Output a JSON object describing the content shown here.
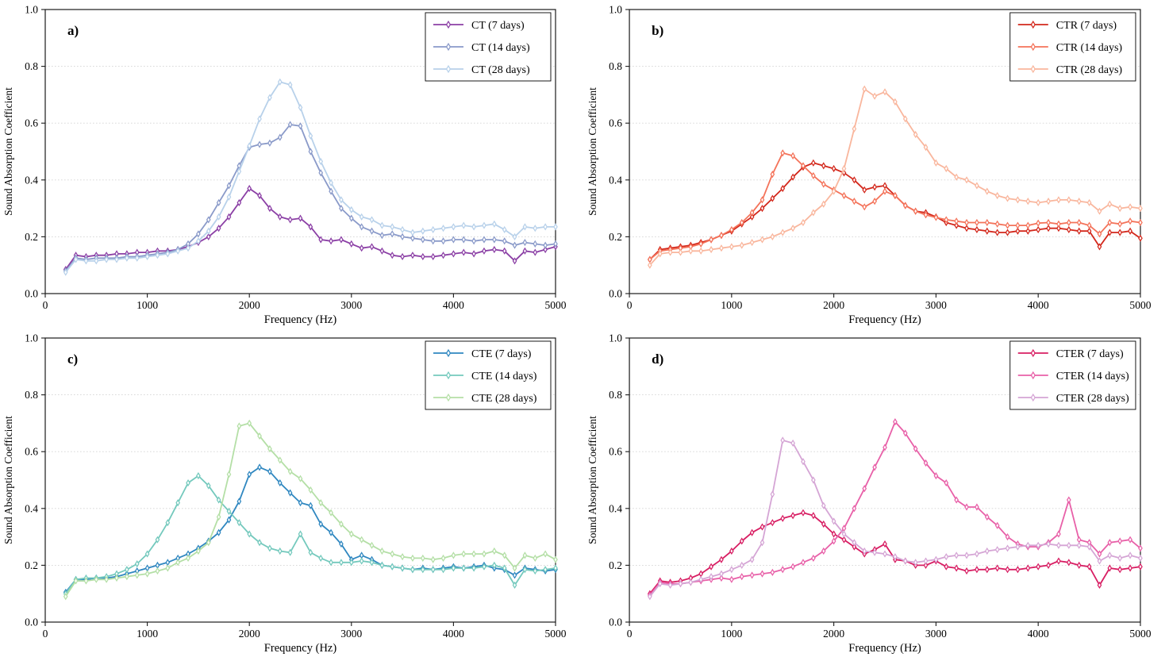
{
  "figure": {
    "background": "#ffffff",
    "grid_color": "#d4d4d4",
    "spine_color": "#1a1a1a",
    "marker_style": "open thin-diamond",
    "legend_border_color": "#000000"
  },
  "chart_data": {
    "type": "line",
    "x_label": "Frequency (Hz)",
    "y_label": "Sound Absorption Coefficient",
    "xlim": [
      0,
      5000
    ],
    "ylim": [
      0.0,
      1.0
    ],
    "x_ticks": [
      0,
      1000,
      2000,
      3000,
      4000,
      5000
    ],
    "y_ticks": [
      0.0,
      0.2,
      0.4,
      0.6,
      0.8,
      1.0
    ],
    "y_tick_labels": [
      "0.0",
      "0.2",
      "0.4",
      "0.6",
      "0.8",
      "1.0"
    ],
    "grid": "horizontal dashed lines at 0.2, 0.4, 0.6, 0.8",
    "legend_position": "upper right",
    "marker": "thin-diamond",
    "frequencies_hz": [
      200,
      300,
      400,
      500,
      600,
      700,
      800,
      900,
      1000,
      1100,
      1200,
      1300,
      1400,
      1500,
      1600,
      1700,
      1800,
      1900,
      2000,
      2100,
      2200,
      2300,
      2400,
      2500,
      2600,
      2700,
      2800,
      2900,
      3000,
      3100,
      3200,
      3300,
      3400,
      3500,
      3600,
      3700,
      3800,
      3900,
      4000,
      4100,
      4200,
      4300,
      4400,
      4500,
      4600,
      4700,
      4800,
      4900,
      5000
    ],
    "panels": [
      {
        "id": "a",
        "label": "a)",
        "series": [
          {
            "name": "CT (7 days)",
            "color": "#8b3fa5",
            "values": [
              0.085,
              0.135,
              0.13,
              0.135,
              0.135,
              0.14,
              0.14,
              0.145,
              0.145,
              0.15,
              0.15,
              0.155,
              0.165,
              0.18,
              0.2,
              0.23,
              0.27,
              0.32,
              0.37,
              0.345,
              0.3,
              0.27,
              0.26,
              0.265,
              0.235,
              0.19,
              0.185,
              0.19,
              0.175,
              0.16,
              0.165,
              0.15,
              0.135,
              0.13,
              0.135,
              0.13,
              0.13,
              0.135,
              0.14,
              0.145,
              0.14,
              0.15,
              0.155,
              0.15,
              0.115,
              0.15,
              0.145,
              0.155,
              0.165
            ]
          },
          {
            "name": "CT (14 days)",
            "color": "#8a9ac9",
            "values": [
              0.08,
              0.125,
              0.12,
              0.125,
              0.125,
              0.125,
              0.13,
              0.13,
              0.135,
              0.14,
              0.145,
              0.155,
              0.175,
              0.21,
              0.26,
              0.32,
              0.38,
              0.45,
              0.515,
              0.525,
              0.53,
              0.55,
              0.595,
              0.59,
              0.5,
              0.425,
              0.36,
              0.3,
              0.265,
              0.235,
              0.22,
              0.205,
              0.21,
              0.2,
              0.195,
              0.19,
              0.185,
              0.185,
              0.19,
              0.19,
              0.185,
              0.19,
              0.19,
              0.185,
              0.17,
              0.18,
              0.175,
              0.17,
              0.175
            ]
          },
          {
            "name": "CT (28 days)",
            "color": "#b8d1ea",
            "values": [
              0.075,
              0.12,
              0.115,
              0.115,
              0.12,
              0.12,
              0.125,
              0.125,
              0.13,
              0.135,
              0.14,
              0.15,
              0.16,
              0.185,
              0.22,
              0.27,
              0.34,
              0.43,
              0.52,
              0.615,
              0.69,
              0.745,
              0.735,
              0.655,
              0.555,
              0.465,
              0.39,
              0.33,
              0.295,
              0.27,
              0.26,
              0.24,
              0.235,
              0.225,
              0.215,
              0.22,
              0.225,
              0.23,
              0.235,
              0.24,
              0.235,
              0.24,
              0.245,
              0.225,
              0.2,
              0.235,
              0.23,
              0.235,
              0.235
            ]
          }
        ]
      },
      {
        "id": "b",
        "label": "b)",
        "series": [
          {
            "name": "CTR (7 days)",
            "color": "#d3281c",
            "values": [
              0.12,
              0.155,
              0.16,
              0.165,
              0.17,
              0.18,
              0.19,
              0.205,
              0.22,
              0.245,
              0.27,
              0.3,
              0.335,
              0.37,
              0.41,
              0.445,
              0.46,
              0.45,
              0.44,
              0.425,
              0.4,
              0.365,
              0.375,
              0.38,
              0.345,
              0.31,
              0.29,
              0.285,
              0.27,
              0.25,
              0.24,
              0.23,
              0.225,
              0.22,
              0.215,
              0.215,
              0.22,
              0.22,
              0.225,
              0.23,
              0.23,
              0.225,
              0.22,
              0.22,
              0.165,
              0.215,
              0.215,
              0.22,
              0.195
            ]
          },
          {
            "name": "CTR (14 days)",
            "color": "#f4735a",
            "values": [
              0.12,
              0.15,
              0.155,
              0.16,
              0.165,
              0.175,
              0.19,
              0.205,
              0.225,
              0.25,
              0.285,
              0.33,
              0.42,
              0.495,
              0.485,
              0.45,
              0.415,
              0.385,
              0.365,
              0.345,
              0.325,
              0.305,
              0.325,
              0.36,
              0.345,
              0.31,
              0.29,
              0.277,
              0.268,
              0.26,
              0.255,
              0.25,
              0.25,
              0.25,
              0.245,
              0.24,
              0.24,
              0.24,
              0.248,
              0.25,
              0.245,
              0.25,
              0.25,
              0.24,
              0.21,
              0.25,
              0.245,
              0.255,
              0.25
            ]
          },
          {
            "name": "CTR (28 days)",
            "color": "#f9b69d",
            "values": [
              0.1,
              0.14,
              0.145,
              0.145,
              0.15,
              0.15,
              0.155,
              0.16,
              0.165,
              0.17,
              0.18,
              0.19,
              0.2,
              0.215,
              0.23,
              0.25,
              0.285,
              0.315,
              0.36,
              0.44,
              0.58,
              0.72,
              0.695,
              0.71,
              0.675,
              0.615,
              0.56,
              0.515,
              0.46,
              0.44,
              0.41,
              0.4,
              0.38,
              0.36,
              0.345,
              0.335,
              0.33,
              0.325,
              0.32,
              0.325,
              0.33,
              0.33,
              0.325,
              0.32,
              0.29,
              0.315,
              0.3,
              0.305,
              0.3
            ]
          }
        ]
      },
      {
        "id": "c",
        "label": "c)",
        "series": [
          {
            "name": "CTE (7 days)",
            "color": "#2f87c0",
            "values": [
              0.105,
              0.15,
              0.15,
              0.155,
              0.155,
              0.16,
              0.17,
              0.18,
              0.19,
              0.2,
              0.21,
              0.225,
              0.24,
              0.26,
              0.285,
              0.315,
              0.36,
              0.425,
              0.52,
              0.545,
              0.53,
              0.49,
              0.455,
              0.42,
              0.41,
              0.345,
              0.315,
              0.275,
              0.22,
              0.235,
              0.22,
              0.2,
              0.195,
              0.19,
              0.185,
              0.19,
              0.185,
              0.19,
              0.195,
              0.19,
              0.195,
              0.2,
              0.19,
              0.185,
              0.165,
              0.19,
              0.185,
              0.18,
              0.185
            ]
          },
          {
            "name": "CTE (14 days)",
            "color": "#74c9bd",
            "values": [
              0.1,
              0.15,
              0.155,
              0.155,
              0.16,
              0.17,
              0.185,
              0.205,
              0.24,
              0.29,
              0.35,
              0.42,
              0.49,
              0.515,
              0.48,
              0.43,
              0.39,
              0.35,
              0.31,
              0.28,
              0.26,
              0.25,
              0.245,
              0.31,
              0.245,
              0.225,
              0.21,
              0.21,
              0.21,
              0.215,
              0.21,
              0.2,
              0.195,
              0.19,
              0.185,
              0.185,
              0.185,
              0.185,
              0.19,
              0.19,
              0.19,
              0.195,
              0.2,
              0.19,
              0.13,
              0.185,
              0.18,
              0.185,
              0.19
            ]
          },
          {
            "name": "CTE (28 days)",
            "color": "#b4dfa6",
            "values": [
              0.09,
              0.145,
              0.145,
              0.15,
              0.15,
              0.155,
              0.16,
              0.165,
              0.17,
              0.18,
              0.19,
              0.21,
              0.225,
              0.25,
              0.28,
              0.37,
              0.52,
              0.69,
              0.7,
              0.655,
              0.61,
              0.57,
              0.53,
              0.505,
              0.465,
              0.42,
              0.385,
              0.345,
              0.31,
              0.29,
              0.27,
              0.25,
              0.24,
              0.23,
              0.225,
              0.225,
              0.22,
              0.225,
              0.235,
              0.24,
              0.24,
              0.24,
              0.25,
              0.235,
              0.19,
              0.235,
              0.225,
              0.24,
              0.22
            ]
          }
        ]
      },
      {
        "id": "d",
        "label": "d)",
        "series": [
          {
            "name": "CTER (7 days)",
            "color": "#d81e63",
            "values": [
              0.1,
              0.145,
              0.14,
              0.145,
              0.155,
              0.17,
              0.195,
              0.22,
              0.25,
              0.285,
              0.315,
              0.335,
              0.35,
              0.365,
              0.375,
              0.385,
              0.375,
              0.345,
              0.31,
              0.29,
              0.265,
              0.24,
              0.255,
              0.275,
              0.22,
              0.215,
              0.2,
              0.2,
              0.215,
              0.195,
              0.19,
              0.18,
              0.185,
              0.185,
              0.19,
              0.185,
              0.185,
              0.19,
              0.195,
              0.2,
              0.215,
              0.21,
              0.2,
              0.195,
              0.13,
              0.19,
              0.185,
              0.19,
              0.195
            ]
          },
          {
            "name": "CTER (14 days)",
            "color": "#e860a8",
            "values": [
              0.095,
              0.14,
              0.135,
              0.135,
              0.14,
              0.145,
              0.15,
              0.155,
              0.15,
              0.16,
              0.165,
              0.17,
              0.175,
              0.185,
              0.195,
              0.21,
              0.225,
              0.25,
              0.285,
              0.33,
              0.4,
              0.47,
              0.545,
              0.615,
              0.705,
              0.665,
              0.61,
              0.56,
              0.515,
              0.49,
              0.43,
              0.405,
              0.405,
              0.37,
              0.34,
              0.3,
              0.275,
              0.265,
              0.265,
              0.28,
              0.31,
              0.43,
              0.29,
              0.28,
              0.24,
              0.28,
              0.285,
              0.29,
              0.26
            ]
          },
          {
            "name": "CTER (28 days)",
            "color": "#d5a5d5",
            "values": [
              0.09,
              0.135,
              0.13,
              0.135,
              0.14,
              0.15,
              0.16,
              0.17,
              0.185,
              0.2,
              0.22,
              0.28,
              0.45,
              0.64,
              0.63,
              0.565,
              0.5,
              0.41,
              0.355,
              0.31,
              0.28,
              0.25,
              0.245,
              0.24,
              0.23,
              0.215,
              0.21,
              0.215,
              0.22,
              0.23,
              0.235,
              0.235,
              0.24,
              0.25,
              0.255,
              0.26,
              0.265,
              0.27,
              0.27,
              0.275,
              0.27,
              0.27,
              0.27,
              0.265,
              0.215,
              0.235,
              0.225,
              0.235,
              0.225
            ]
          }
        ]
      }
    ]
  }
}
